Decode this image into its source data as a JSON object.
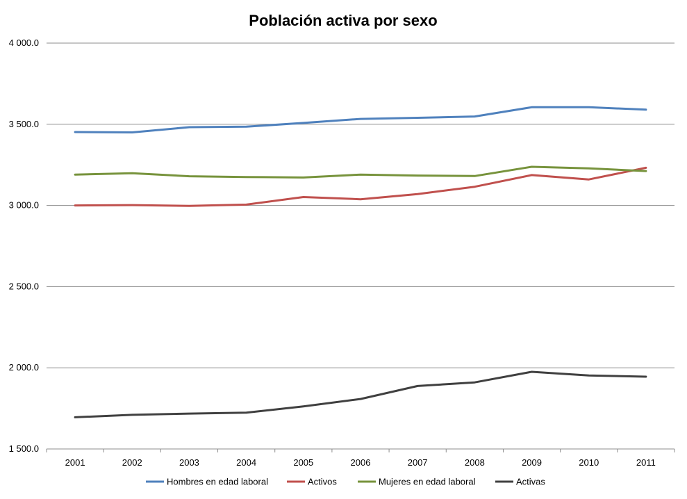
{
  "chart_data": {
    "type": "line",
    "title": "Población activa por sexo",
    "xlabel": "",
    "ylabel": "",
    "x": [
      "2001",
      "2002",
      "2003",
      "2004",
      "2005",
      "2006",
      "2007",
      "2008",
      "2009",
      "2010",
      "2011"
    ],
    "ylim": [
      1500,
      4000
    ],
    "yticks": [
      1500,
      2000,
      2500,
      3000,
      3500,
      4000
    ],
    "ytick_labels": [
      "1 500.0",
      "2 000.0",
      "2 500.0",
      "3 000.0",
      "3 500.0",
      "4 000.0"
    ],
    "grid": true,
    "legend": "bottom",
    "series": [
      {
        "name": "Hombres en edad laboral",
        "color": "#4f81bd",
        "values": [
          3452,
          3450,
          3482,
          3485,
          3508,
          3533,
          3540,
          3548,
          3605,
          3605,
          3590
        ]
      },
      {
        "name": "Activos",
        "color": "#c0504d",
        "values": [
          3000,
          3002,
          2997,
          3005,
          3052,
          3038,
          3070,
          3115,
          3187,
          3160,
          3232
        ]
      },
      {
        "name": "Mujeres en edad laboral",
        "color": "#77933c",
        "values": [
          3190,
          3198,
          3180,
          3175,
          3172,
          3190,
          3184,
          3181,
          3238,
          3228,
          3212
        ]
      },
      {
        "name": "Activas",
        "color": "#404040",
        "values": [
          1695,
          1710,
          1718,
          1724,
          1762,
          1808,
          1888,
          1910,
          1975,
          1953,
          1945
        ]
      }
    ]
  }
}
